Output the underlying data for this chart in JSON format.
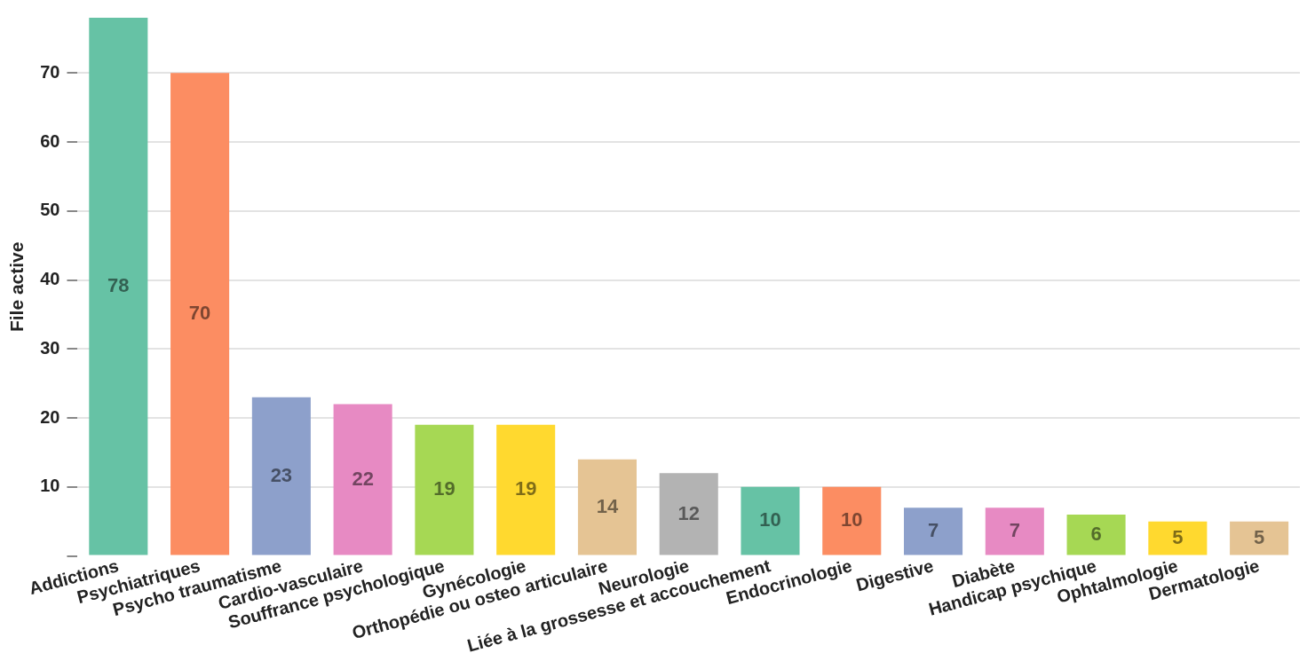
{
  "chart_data": {
    "type": "bar",
    "ylabel": "File active",
    "categories": [
      "Addictions",
      "Psychiatriques",
      "Psycho traumatisme",
      "Cardio-vasculaire",
      "Souffrance psychologique",
      "Gynécologie",
      "Orthopédie ou osteo articulaire",
      "Neurologie",
      "Liée à la grossesse et accouchement",
      "Endocrinologie",
      "Digestive",
      "Diabète",
      "Handicap psychique",
      "Ophtalmologie",
      "Dermatologie"
    ],
    "values": [
      78,
      70,
      23,
      22,
      19,
      19,
      14,
      12,
      10,
      10,
      7,
      7,
      6,
      5,
      5
    ],
    "colors": [
      "#66c2a5",
      "#fc8d62",
      "#8da0cb",
      "#e78ac3",
      "#a6d854",
      "#ffd92f",
      "#e5c494",
      "#b3b3b3",
      "#66c2a5",
      "#fc8d62",
      "#8da0cb",
      "#e78ac3",
      "#a6d854",
      "#ffd92f",
      "#e5c494"
    ],
    "ylim": [
      0,
      78
    ],
    "yticks": [
      {
        "value": 0,
        "label": null
      },
      10,
      20,
      30,
      40,
      50,
      60,
      70
    ],
    "grid": "y",
    "legend": false,
    "data_labels": true
  }
}
